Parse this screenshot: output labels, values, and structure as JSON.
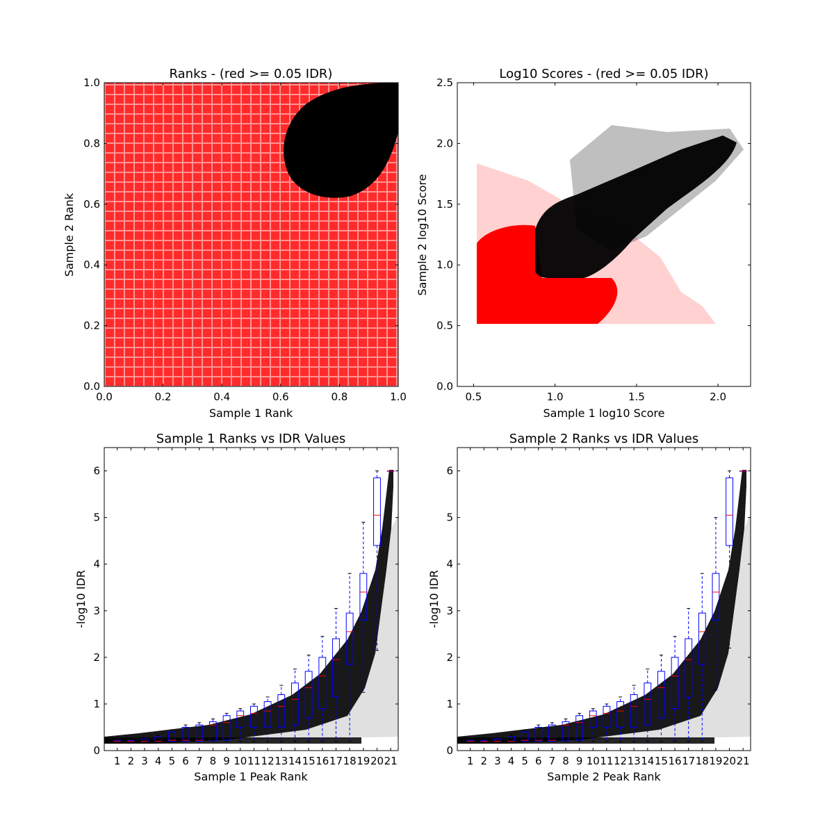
{
  "chart_data": [
    {
      "type": "scatter",
      "title": "Ranks - (red >= 0.05 IDR)",
      "xlabel": "Sample 1 Rank",
      "ylabel": "Sample 2 Rank",
      "xlim": [
        0.0,
        1.0
      ],
      "ylim": [
        0.0,
        1.0
      ],
      "xticks": [
        "0.0",
        "0.2",
        "0.4",
        "0.6",
        "0.8",
        "1.0"
      ],
      "yticks": [
        "0.0",
        "0.2",
        "0.4",
        "0.6",
        "0.8",
        "1.0"
      ],
      "grid": false,
      "colors": {
        "pass": "#000000",
        "fail": "#ff0000"
      },
      "regions": {
        "fail_fill": {
          "x": [
            0.0,
            1.0
          ],
          "y": [
            0.0,
            1.0
          ]
        },
        "pass_blob": {
          "x_min": 0.62,
          "y_min": 0.63,
          "x_max": 1.0,
          "y_max": 1.0
        }
      }
    },
    {
      "type": "scatter",
      "title": "Log10 Scores - (red >= 0.05 IDR)",
      "xlabel": "Sample 1 log10 Score",
      "ylabel": "Sample 2 log10 Score",
      "xlim": [
        0.4,
        2.2
      ],
      "ylim": [
        0.0,
        2.5
      ],
      "xticks": [
        "0.5",
        "1.0",
        "1.5",
        "2.0"
      ],
      "yticks": [
        "0.0",
        "0.5",
        "1.0",
        "1.5",
        "2.0",
        "2.5"
      ],
      "grid": false,
      "colors": {
        "pass": "#000000",
        "fail": "#ff0000"
      },
      "regions": {
        "fail_fill": {
          "x": [
            0.52,
            1.35
          ],
          "y": [
            0.52,
            1.35
          ]
        },
        "pass_band": {
          "x_min": 0.9,
          "y_min": 0.9,
          "x_max": 2.05,
          "y_max": 2.05
        }
      }
    },
    {
      "type": "box",
      "title": "Sample 1 Ranks vs IDR Values",
      "xlabel": "Sample 1 Peak Rank",
      "ylabel": "-log10 IDR",
      "ylim": [
        0,
        6.5
      ],
      "yticks": [
        "0",
        "1",
        "2",
        "3",
        "4",
        "5",
        "6"
      ],
      "categories": [
        "1",
        "2",
        "3",
        "4",
        "5",
        "6",
        "7",
        "8",
        "9",
        "10",
        "11",
        "12",
        "13",
        "14",
        "15",
        "16",
        "17",
        "18",
        "19",
        "20",
        "21"
      ],
      "boxes": [
        {
          "q1": 0.2,
          "median": 0.2,
          "q3": 0.22,
          "lo": 0.2,
          "hi": 0.22
        },
        {
          "q1": 0.2,
          "median": 0.2,
          "q3": 0.22,
          "lo": 0.2,
          "hi": 0.22
        },
        {
          "q1": 0.2,
          "median": 0.2,
          "q3": 0.25,
          "lo": 0.2,
          "hi": 0.28
        },
        {
          "q1": 0.2,
          "median": 0.2,
          "q3": 0.3,
          "lo": 0.2,
          "hi": 0.33
        },
        {
          "q1": 0.2,
          "median": 0.22,
          "q3": 0.4,
          "lo": 0.2,
          "hi": 0.44
        },
        {
          "q1": 0.2,
          "median": 0.22,
          "q3": 0.5,
          "lo": 0.2,
          "hi": 0.55
        },
        {
          "q1": 0.2,
          "median": 0.22,
          "q3": 0.55,
          "lo": 0.2,
          "hi": 0.6
        },
        {
          "q1": 0.21,
          "median": 0.55,
          "q3": 0.62,
          "lo": 0.2,
          "hi": 0.68
        },
        {
          "q1": 0.22,
          "median": 0.6,
          "q3": 0.75,
          "lo": 0.2,
          "hi": 0.8
        },
        {
          "q1": 0.5,
          "median": 0.75,
          "q3": 0.85,
          "lo": 0.2,
          "hi": 0.9
        },
        {
          "q1": 0.5,
          "median": 0.8,
          "q3": 0.95,
          "lo": 0.2,
          "hi": 1.0
        },
        {
          "q1": 0.5,
          "median": 0.85,
          "q3": 1.05,
          "lo": 0.2,
          "hi": 1.15
        },
        {
          "q1": 0.5,
          "median": 0.95,
          "q3": 1.2,
          "lo": 0.2,
          "hi": 1.4
        },
        {
          "q1": 0.55,
          "median": 1.1,
          "q3": 1.45,
          "lo": 0.2,
          "hi": 1.75
        },
        {
          "q1": 0.7,
          "median": 1.35,
          "q3": 1.7,
          "lo": 0.2,
          "hi": 2.05
        },
        {
          "q1": 0.9,
          "median": 1.6,
          "q3": 2.0,
          "lo": 0.2,
          "hi": 2.45
        },
        {
          "q1": 1.15,
          "median": 1.95,
          "q3": 2.4,
          "lo": 0.2,
          "hi": 3.05
        },
        {
          "q1": 1.85,
          "median": 2.55,
          "q3": 2.95,
          "lo": 0.2,
          "hi": 3.8
        },
        {
          "q1": 2.8,
          "median": 3.4,
          "q3": 3.8,
          "lo": 1.25,
          "hi": 4.9
        },
        {
          "q1": 4.4,
          "median": 5.05,
          "q3": 5.85,
          "lo": 2.15,
          "hi": 6.0
        },
        {
          "q1": 6.0,
          "median": 6.0,
          "q3": 6.0,
          "lo": 6.0,
          "hi": 6.0
        }
      ],
      "colors": {
        "box": "#0000ff",
        "median": "#ff0000",
        "points": "#000000"
      }
    },
    {
      "type": "box",
      "title": "Sample 2 Ranks vs IDR Values",
      "xlabel": "Sample 2 Peak Rank",
      "ylabel": "-log10 IDR",
      "ylim": [
        0,
        6.5
      ],
      "yticks": [
        "0",
        "1",
        "2",
        "3",
        "4",
        "5",
        "6"
      ],
      "categories": [
        "1",
        "2",
        "3",
        "4",
        "5",
        "6",
        "7",
        "8",
        "9",
        "10",
        "11",
        "12",
        "13",
        "14",
        "15",
        "16",
        "17",
        "18",
        "19",
        "20",
        "21"
      ],
      "boxes": [
        {
          "q1": 0.2,
          "median": 0.2,
          "q3": 0.22,
          "lo": 0.2,
          "hi": 0.22
        },
        {
          "q1": 0.2,
          "median": 0.2,
          "q3": 0.22,
          "lo": 0.2,
          "hi": 0.22
        },
        {
          "q1": 0.2,
          "median": 0.2,
          "q3": 0.25,
          "lo": 0.2,
          "hi": 0.28
        },
        {
          "q1": 0.2,
          "median": 0.2,
          "q3": 0.3,
          "lo": 0.2,
          "hi": 0.33
        },
        {
          "q1": 0.2,
          "median": 0.22,
          "q3": 0.4,
          "lo": 0.2,
          "hi": 0.44
        },
        {
          "q1": 0.2,
          "median": 0.22,
          "q3": 0.5,
          "lo": 0.2,
          "hi": 0.55
        },
        {
          "q1": 0.2,
          "median": 0.22,
          "q3": 0.55,
          "lo": 0.2,
          "hi": 0.6
        },
        {
          "q1": 0.21,
          "median": 0.55,
          "q3": 0.62,
          "lo": 0.2,
          "hi": 0.68
        },
        {
          "q1": 0.22,
          "median": 0.6,
          "q3": 0.75,
          "lo": 0.2,
          "hi": 0.8
        },
        {
          "q1": 0.5,
          "median": 0.75,
          "q3": 0.85,
          "lo": 0.2,
          "hi": 0.9
        },
        {
          "q1": 0.5,
          "median": 0.8,
          "q3": 0.95,
          "lo": 0.2,
          "hi": 1.0
        },
        {
          "q1": 0.5,
          "median": 0.85,
          "q3": 1.05,
          "lo": 0.2,
          "hi": 1.15
        },
        {
          "q1": 0.5,
          "median": 0.95,
          "q3": 1.2,
          "lo": 0.2,
          "hi": 1.4
        },
        {
          "q1": 0.55,
          "median": 1.1,
          "q3": 1.45,
          "lo": 0.2,
          "hi": 1.75
        },
        {
          "q1": 0.7,
          "median": 1.35,
          "q3": 1.7,
          "lo": 0.2,
          "hi": 2.05
        },
        {
          "q1": 0.9,
          "median": 1.6,
          "q3": 2.0,
          "lo": 0.2,
          "hi": 2.45
        },
        {
          "q1": 1.15,
          "median": 1.95,
          "q3": 2.4,
          "lo": 0.2,
          "hi": 3.05
        },
        {
          "q1": 1.85,
          "median": 2.55,
          "q3": 2.95,
          "lo": 0.2,
          "hi": 3.8
        },
        {
          "q1": 2.8,
          "median": 3.4,
          "q3": 3.8,
          "lo": 1.3,
          "hi": 5.0
        },
        {
          "q1": 4.4,
          "median": 5.05,
          "q3": 5.85,
          "lo": 2.2,
          "hi": 6.0
        },
        {
          "q1": 6.0,
          "median": 6.0,
          "q3": 6.0,
          "lo": 6.0,
          "hi": 6.0
        }
      ],
      "colors": {
        "box": "#0000ff",
        "median": "#ff0000",
        "points": "#000000"
      }
    }
  ]
}
